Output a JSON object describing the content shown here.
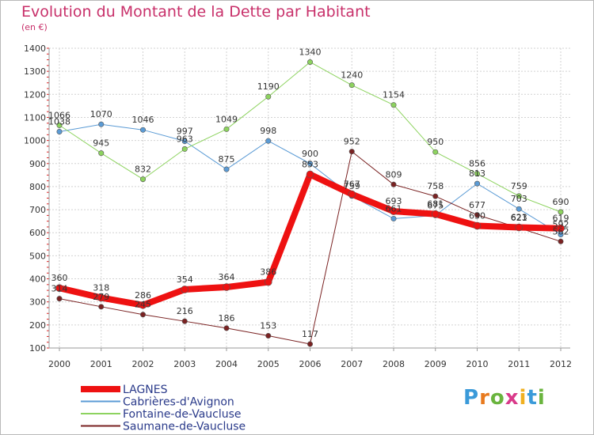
{
  "title": "Evolution du Montant de la Dette par Habitant",
  "subtitle": "(en €)",
  "logo": {
    "text": "Proxiti",
    "letter_colors": [
      "#3a9ad9",
      "#e87a1e",
      "#6ab43e",
      "#d93a8a",
      "#f0b020",
      "#3a9ad9",
      "#6ab43e"
    ]
  },
  "chart_data": {
    "type": "line",
    "title": "Evolution du Montant de la Dette par Habitant",
    "subtitle": "(en €)",
    "x": [
      "2000",
      "2001",
      "2002",
      "2003",
      "2004",
      "2005",
      "2006",
      "2007",
      "2008",
      "2009",
      "2010",
      "2011",
      "2012"
    ],
    "yticks": [
      100,
      200,
      300,
      400,
      500,
      600,
      700,
      800,
      900,
      1000,
      1100,
      1200,
      1300,
      1400
    ],
    "ylim": [
      100,
      1400
    ],
    "grid": true,
    "legend_position": "bottom-left",
    "series": [
      {
        "name": "LAGNES",
        "color": "#ee1111",
        "width": 8,
        "values": [
          360,
          318,
          286,
          354,
          364,
          386,
          853,
          767,
          693,
          681,
          630,
          623,
          619
        ],
        "labels": [
          "360",
          "318",
          "286",
          "354",
          "364",
          "386",
          "853",
          "767",
          "693",
          "681",
          "630",
          "623",
          "619"
        ]
      },
      {
        "name": "Cabrières-d'Avignon",
        "color": "#5b9bd5",
        "width": 1,
        "values": [
          1038,
          1070,
          1046,
          997,
          875,
          998,
          900,
          759,
          661,
          675,
          813,
          703,
          592
        ],
        "labels": [
          "1038",
          "1070",
          "1046",
          "997",
          "875",
          "998",
          "900",
          "759",
          "661",
          "675",
          "813",
          "703",
          "592"
        ]
      },
      {
        "name": "Fontaine-de-Vaucluse",
        "color": "#8dd35f",
        "width": 1,
        "values": [
          1066,
          945,
          832,
          963,
          1049,
          1190,
          1340,
          1240,
          1154,
          950,
          856,
          759,
          690
        ],
        "labels": [
          "1066",
          "945",
          "832",
          "963",
          "1049",
          "1190",
          "1340",
          "1240",
          "1154",
          "950",
          "856",
          "759",
          "690"
        ]
      },
      {
        "name": "Saumane-de-Vaucluse",
        "color": "#7a2222",
        "width": 1,
        "values": [
          314,
          279,
          245,
          216,
          186,
          153,
          117,
          952,
          809,
          758,
          677,
          621,
          562
        ],
        "labels": [
          "314",
          "279",
          "245",
          "216",
          "186",
          "153",
          "117",
          "952",
          "809",
          "758",
          "677",
          "621",
          "562"
        ]
      }
    ]
  }
}
